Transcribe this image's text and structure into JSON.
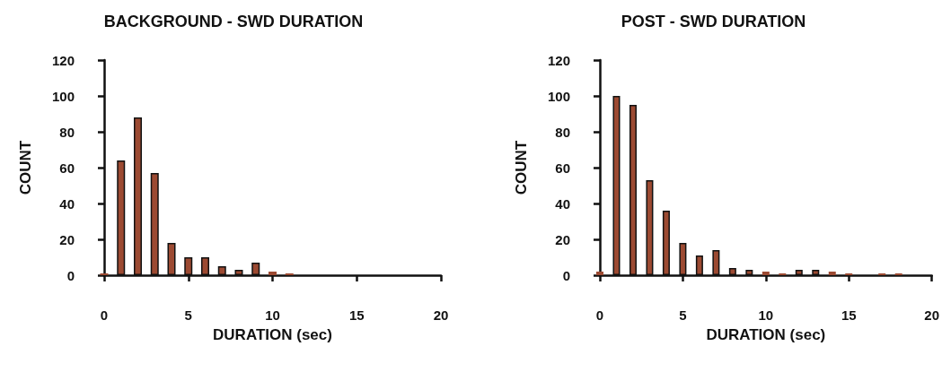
{
  "chart_data": [
    {
      "type": "bar",
      "title": "BACKGROUND - SWD DURATION",
      "xlabel": "DURATION (sec)",
      "ylabel": "COUNT",
      "x": [
        0,
        1,
        2,
        3,
        4,
        5,
        6,
        7,
        8,
        9,
        10,
        11
      ],
      "values": [
        1,
        64,
        88,
        57,
        18,
        10,
        10,
        5,
        3,
        7,
        2,
        1
      ],
      "color": "#9c4a32",
      "xlim": [
        0,
        20
      ],
      "xticks": [
        0,
        5,
        10,
        15,
        20
      ],
      "ylim": [
        0,
        120
      ],
      "yticks": [
        0,
        20,
        40,
        60,
        80,
        100,
        120
      ],
      "grid": false
    },
    {
      "type": "bar",
      "title": "POST - SWD DURATION",
      "xlabel": "DURATION (sec)",
      "ylabel": "COUNT",
      "x": [
        0,
        1,
        2,
        3,
        4,
        5,
        6,
        7,
        8,
        9,
        10,
        11,
        12,
        13,
        14,
        15,
        16,
        17,
        18
      ],
      "values": [
        2,
        100,
        95,
        53,
        36,
        18,
        11,
        14,
        4,
        3,
        2,
        1,
        3,
        3,
        2,
        1,
        0,
        1,
        1
      ],
      "color": "#9c4a32",
      "xlim": [
        0,
        20
      ],
      "xticks": [
        0,
        5,
        10,
        15,
        20
      ],
      "ylim": [
        0,
        120
      ],
      "yticks": [
        0,
        20,
        40,
        60,
        80,
        100,
        120
      ],
      "grid": false
    }
  ]
}
